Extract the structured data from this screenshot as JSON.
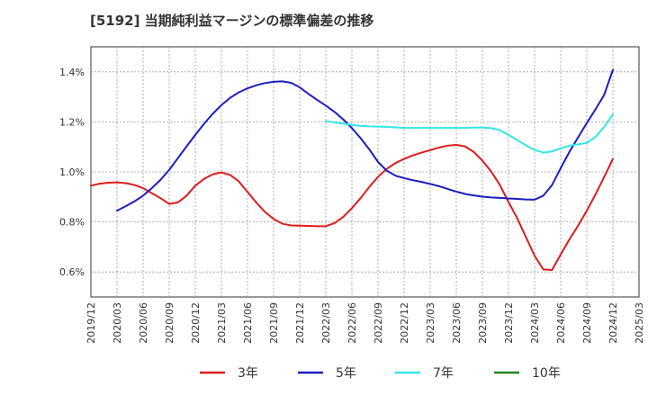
{
  "chart_data": {
    "type": "line",
    "title": "[5192]  当期純利益マージンの標準偏差の推移",
    "xlabel": "",
    "ylabel": "",
    "ylim": [
      0.5,
      1.5
    ],
    "yticks": [
      0.6,
      0.8,
      1.0,
      1.2,
      1.4
    ],
    "ytick_labels": [
      "0.6%",
      "0.8%",
      "1.0%",
      "1.2%",
      "1.4%"
    ],
    "x_range": [
      "2019/12",
      "2025/03"
    ],
    "xtick_labels": [
      "2019/12",
      "2020/03",
      "2020/06",
      "2020/09",
      "2020/12",
      "2021/03",
      "2021/06",
      "2021/09",
      "2021/12",
      "2022/03",
      "2022/06",
      "2022/09",
      "2022/12",
      "2023/03",
      "2023/06",
      "2023/09",
      "2023/12",
      "2024/03",
      "2024/06",
      "2024/09",
      "2024/12",
      "2025/03"
    ],
    "grid": true,
    "legend_position": "bottom",
    "series": [
      {
        "name": "3年",
        "color": "#dd1c1c",
        "points": [
          [
            "2019/12",
            0.945
          ],
          [
            "2020/01",
            0.953
          ],
          [
            "2020/02",
            0.957
          ],
          [
            "2020/03",
            0.958
          ],
          [
            "2020/04",
            0.955
          ],
          [
            "2020/05",
            0.948
          ],
          [
            "2020/06",
            0.935
          ],
          [
            "2020/07",
            0.915
          ],
          [
            "2020/08",
            0.895
          ],
          [
            "2020/09",
            0.872
          ],
          [
            "2020/10",
            0.878
          ],
          [
            "2020/11",
            0.905
          ],
          [
            "2020/12",
            0.945
          ],
          [
            "2021/01",
            0.972
          ],
          [
            "2021/02",
            0.99
          ],
          [
            "2021/03",
            0.998
          ],
          [
            "2021/04",
            0.988
          ],
          [
            "2021/05",
            0.962
          ],
          [
            "2021/06",
            0.92
          ],
          [
            "2021/07",
            0.878
          ],
          [
            "2021/08",
            0.84
          ],
          [
            "2021/09",
            0.812
          ],
          [
            "2021/10",
            0.793
          ],
          [
            "2021/11",
            0.786
          ],
          [
            "2021/12",
            0.785
          ],
          [
            "2022/01",
            0.784
          ],
          [
            "2022/02",
            0.783
          ],
          [
            "2022/03",
            0.783
          ],
          [
            "2022/04",
            0.795
          ],
          [
            "2022/05",
            0.82
          ],
          [
            "2022/06",
            0.855
          ],
          [
            "2022/07",
            0.895
          ],
          [
            "2022/08",
            0.94
          ],
          [
            "2022/09",
            0.98
          ],
          [
            "2022/10",
            1.012
          ],
          [
            "2022/11",
            1.035
          ],
          [
            "2022/12",
            1.052
          ],
          [
            "2023/01",
            1.066
          ],
          [
            "2023/02",
            1.077
          ],
          [
            "2023/03",
            1.087
          ],
          [
            "2023/04",
            1.097
          ],
          [
            "2023/05",
            1.105
          ],
          [
            "2023/06",
            1.108
          ],
          [
            "2023/07",
            1.102
          ],
          [
            "2023/08",
            1.08
          ],
          [
            "2023/09",
            1.045
          ],
          [
            "2023/10",
            1.002
          ],
          [
            "2023/11",
            0.948
          ],
          [
            "2023/12",
            0.88
          ],
          [
            "2024/01",
            0.815
          ],
          [
            "2024/02",
            0.74
          ],
          [
            "2024/03",
            0.665
          ],
          [
            "2024/04",
            0.61
          ],
          [
            "2024/05",
            0.608
          ],
          [
            "2024/06",
            0.67
          ],
          [
            "2024/07",
            0.73
          ],
          [
            "2024/08",
            0.785
          ],
          [
            "2024/09",
            0.845
          ],
          [
            "2024/10",
            0.91
          ],
          [
            "2024/11",
            0.98
          ],
          [
            "2024/12",
            1.052
          ]
        ]
      },
      {
        "name": "5年",
        "color": "#1c1cbf",
        "points": [
          [
            "2020/03",
            0.845
          ],
          [
            "2020/04",
            0.863
          ],
          [
            "2020/05",
            0.882
          ],
          [
            "2020/06",
            0.905
          ],
          [
            "2020/07",
            0.935
          ],
          [
            "2020/08",
            0.968
          ],
          [
            "2020/09",
            1.008
          ],
          [
            "2020/10",
            1.055
          ],
          [
            "2020/11",
            1.102
          ],
          [
            "2020/12",
            1.148
          ],
          [
            "2021/01",
            1.192
          ],
          [
            "2021/02",
            1.232
          ],
          [
            "2021/03",
            1.267
          ],
          [
            "2021/04",
            1.296
          ],
          [
            "2021/05",
            1.318
          ],
          [
            "2021/06",
            1.334
          ],
          [
            "2021/07",
            1.346
          ],
          [
            "2021/08",
            1.355
          ],
          [
            "2021/09",
            1.36
          ],
          [
            "2021/10",
            1.362
          ],
          [
            "2021/11",
            1.356
          ],
          [
            "2021/12",
            1.338
          ],
          [
            "2022/01",
            1.312
          ],
          [
            "2022/02",
            1.288
          ],
          [
            "2022/03",
            1.265
          ],
          [
            "2022/04",
            1.24
          ],
          [
            "2022/05",
            1.21
          ],
          [
            "2022/06",
            1.175
          ],
          [
            "2022/07",
            1.135
          ],
          [
            "2022/08",
            1.09
          ],
          [
            "2022/09",
            1.04
          ],
          [
            "2022/10",
            1.005
          ],
          [
            "2022/11",
            0.985
          ],
          [
            "2022/12",
            0.975
          ],
          [
            "2023/01",
            0.967
          ],
          [
            "2023/02",
            0.96
          ],
          [
            "2023/03",
            0.952
          ],
          [
            "2023/04",
            0.943
          ],
          [
            "2023/05",
            0.932
          ],
          [
            "2023/06",
            0.921
          ],
          [
            "2023/07",
            0.912
          ],
          [
            "2023/08",
            0.906
          ],
          [
            "2023/09",
            0.901
          ],
          [
            "2023/10",
            0.898
          ],
          [
            "2023/11",
            0.896
          ],
          [
            "2023/12",
            0.894
          ],
          [
            "2024/01",
            0.892
          ],
          [
            "2024/02",
            0.89
          ],
          [
            "2024/03",
            0.889
          ],
          [
            "2024/04",
            0.905
          ],
          [
            "2024/05",
            0.947
          ],
          [
            "2024/06",
            1.015
          ],
          [
            "2024/07",
            1.08
          ],
          [
            "2024/08",
            1.138
          ],
          [
            "2024/09",
            1.195
          ],
          [
            "2024/10",
            1.25
          ],
          [
            "2024/11",
            1.308
          ],
          [
            "2024/12",
            1.408
          ]
        ]
      },
      {
        "name": "7年",
        "color": "#33e6e6",
        "points": [
          [
            "2022/03",
            1.203
          ],
          [
            "2022/04",
            1.198
          ],
          [
            "2022/05",
            1.193
          ],
          [
            "2022/06",
            1.188
          ],
          [
            "2022/07",
            1.184
          ],
          [
            "2022/08",
            1.182
          ],
          [
            "2022/09",
            1.181
          ],
          [
            "2022/10",
            1.18
          ],
          [
            "2022/11",
            1.178
          ],
          [
            "2022/12",
            1.176
          ],
          [
            "2023/01",
            1.176
          ],
          [
            "2023/02",
            1.176
          ],
          [
            "2023/03",
            1.176
          ],
          [
            "2023/04",
            1.176
          ],
          [
            "2023/05",
            1.176
          ],
          [
            "2023/06",
            1.176
          ],
          [
            "2023/07",
            1.176
          ],
          [
            "2023/08",
            1.177
          ],
          [
            "2023/09",
            1.177
          ],
          [
            "2023/10",
            1.175
          ],
          [
            "2023/11",
            1.167
          ],
          [
            "2023/12",
            1.148
          ],
          [
            "2024/01",
            1.127
          ],
          [
            "2024/02",
            1.106
          ],
          [
            "2024/03",
            1.088
          ],
          [
            "2024/04",
            1.077
          ],
          [
            "2024/05",
            1.082
          ],
          [
            "2024/06",
            1.094
          ],
          [
            "2024/07",
            1.105
          ],
          [
            "2024/08",
            1.11
          ],
          [
            "2024/09",
            1.116
          ],
          [
            "2024/10",
            1.14
          ],
          [
            "2024/11",
            1.18
          ],
          [
            "2024/12",
            1.23
          ]
        ]
      },
      {
        "name": "10年",
        "color": "#228822",
        "points": []
      }
    ]
  }
}
